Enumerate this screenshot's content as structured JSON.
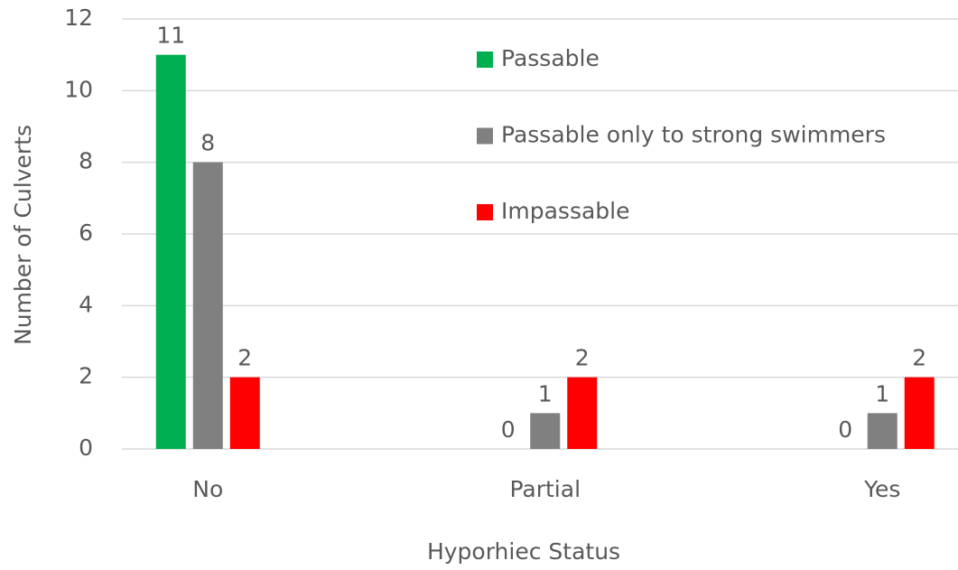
{
  "chart_data": {
    "type": "bar",
    "categories": [
      "No",
      "Partial",
      "Yes"
    ],
    "series": [
      {
        "name": "Passable",
        "color": "#00b050",
        "values": [
          11,
          0,
          0
        ]
      },
      {
        "name": "Passable only to strong swimmers",
        "color": "#808080",
        "values": [
          8,
          1,
          1
        ]
      },
      {
        "name": "Impassable",
        "color": "#ff0000",
        "values": [
          2,
          2,
          2
        ]
      }
    ],
    "ylim": [
      0,
      12
    ],
    "yticks": [
      0,
      2,
      4,
      6,
      8,
      10,
      12
    ],
    "grid": true,
    "xlabel": "Hyporhiec Status",
    "ylabel": "Number of Culverts",
    "legend": "top"
  }
}
